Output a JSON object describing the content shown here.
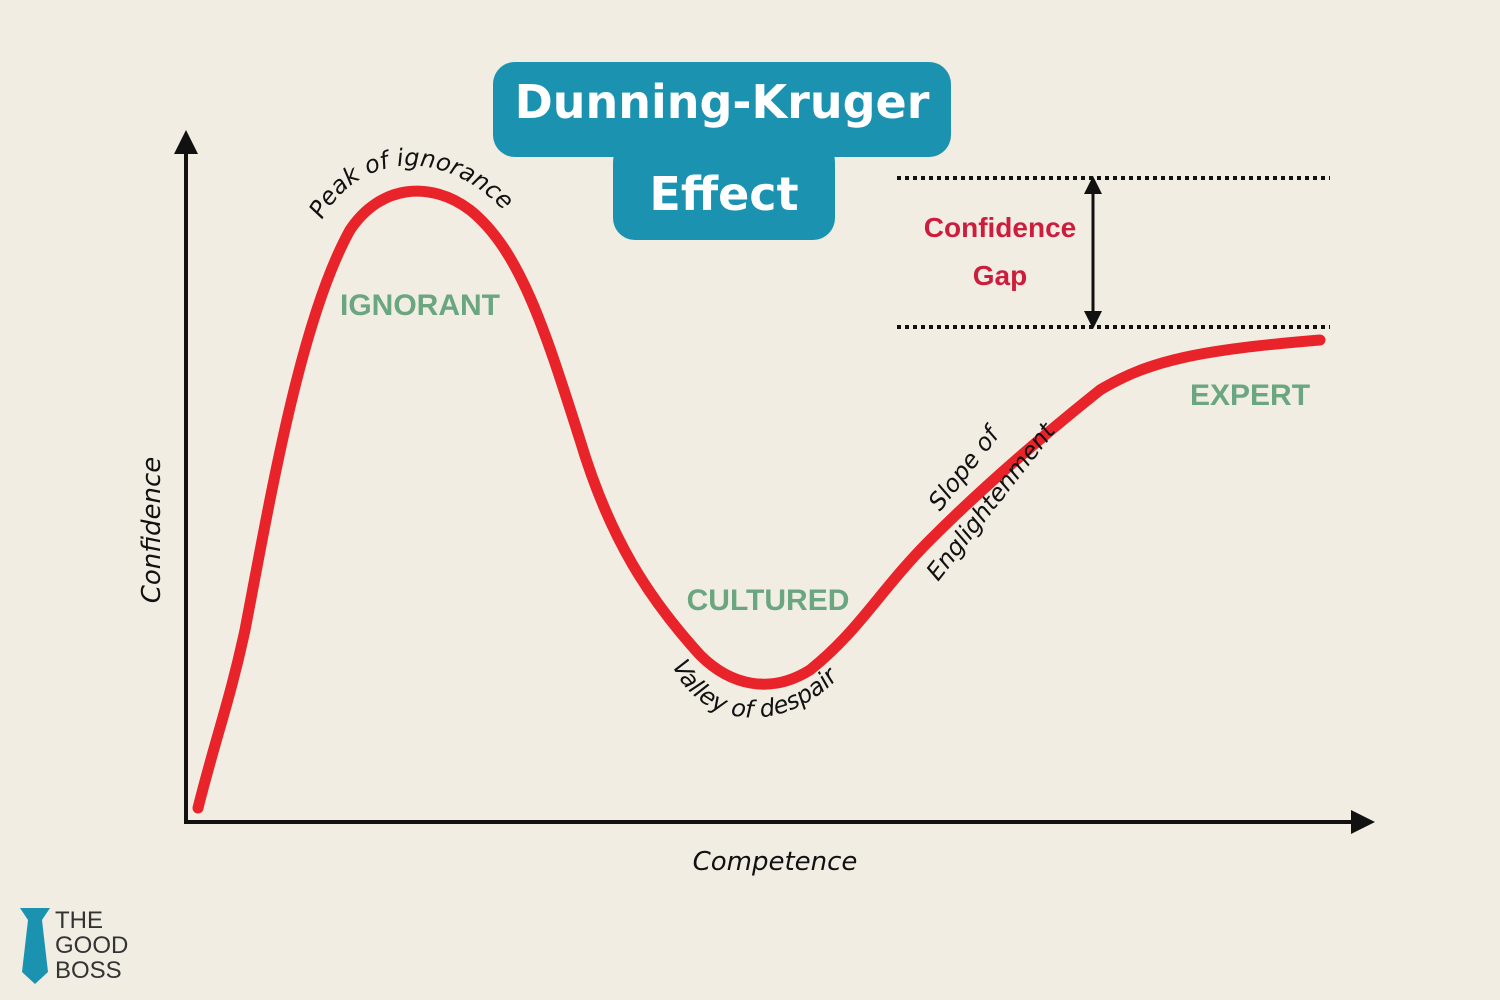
{
  "title_lines": [
    "Dunning-Kruger",
    "Effect"
  ],
  "axes": {
    "y_label": "Confidence",
    "x_label": "Competence"
  },
  "stages": [
    "IGNORANT",
    "CULTURED",
    "EXPERT"
  ],
  "curve_labels": {
    "peak": "Peak of ignorance",
    "valley": "Valley of despair",
    "slope_lines": [
      "Slope of",
      "Englightenment"
    ]
  },
  "gap_label_lines": [
    "Confidence",
    "Gap"
  ],
  "logo_lines": [
    "THE",
    "GOOD",
    "BOSS"
  ]
}
